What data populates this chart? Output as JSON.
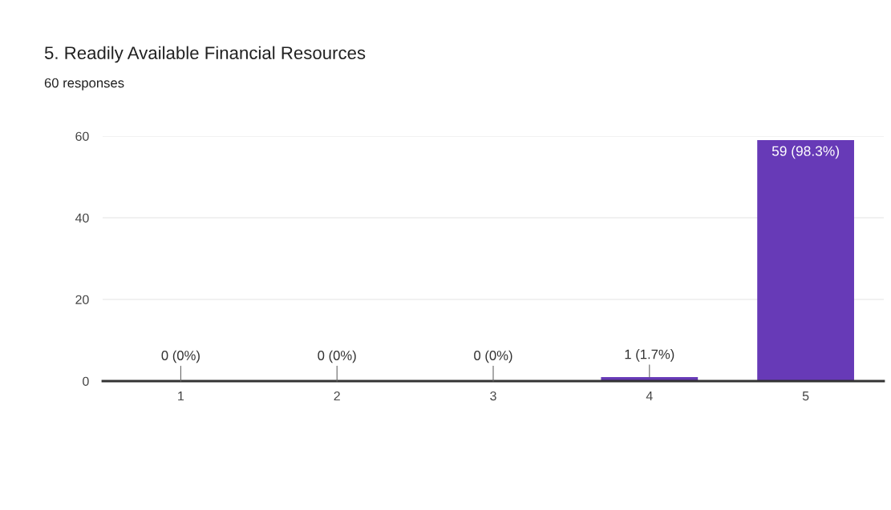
{
  "chart_data": {
    "type": "bar",
    "title": "5. Readily Available Financial Resources",
    "subtitle": "60 responses",
    "categories": [
      "1",
      "2",
      "3",
      "4",
      "5"
    ],
    "values": [
      0,
      0,
      0,
      1,
      59
    ],
    "color": "#673ab7",
    "value_labels": [
      "0 (0%)",
      "0 (0%)",
      "0 (0%)",
      "1 (1.7%)",
      "59 (98.3%)"
    ],
    "ylim": [
      0,
      60
    ],
    "yticks": [
      0,
      20,
      40,
      60
    ],
    "grid": "y"
  }
}
